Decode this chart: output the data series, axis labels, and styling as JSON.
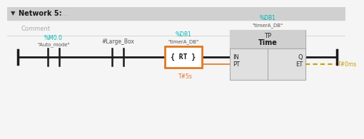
{
  "bg_color": "#e8e8e8",
  "header_color": "#d0d0d0",
  "content_bg": "#f5f5f5",
  "title": "Network 5:",
  "title_dots": "......",
  "comment_text": "Comment",
  "rail_color": "#1a1a1a",
  "contact1_label_top": "%M0.0",
  "contact1_label_bot": "\"Auto_mode\"",
  "contact2_label_top": "#Large_Box",
  "coil_label_top": "%DB1",
  "coil_label_top2": "\"timerA_DB\"",
  "coil_label_bot": "{ RT }",
  "coil_color": "#e07820",
  "timer_header_label1": "%DB1",
  "timer_header_label2": "\"timerA_DB\"",
  "timer_title1": "TP",
  "timer_title2": "Time",
  "timer_in_label": "IN",
  "timer_q_label": "Q",
  "timer_pt_label": "PT",
  "timer_et_label": "ET",
  "timer_bg": "#e0e0e0",
  "timer_title_bg": "#d0d0d0",
  "pt_value": "T#5s",
  "et_value": "T#0ms",
  "pt_color": "#e07820",
  "et_color": "#c8a000",
  "teal_color": "#00b4b4",
  "dark_color": "#555555"
}
